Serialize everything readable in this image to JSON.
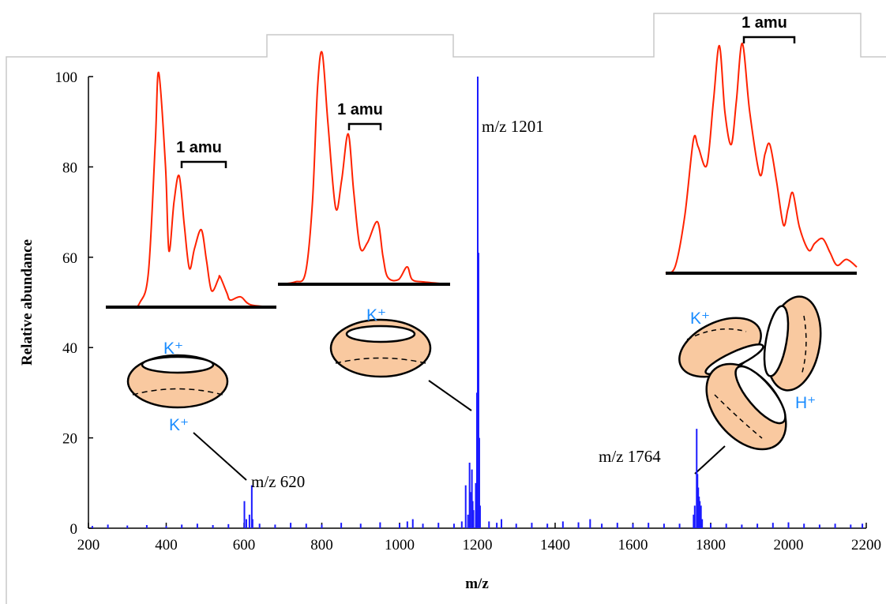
{
  "chart_data": {
    "type": "stick",
    "x_label": "m/z",
    "y_label": "Relative abundance",
    "xlim": [
      200,
      2200
    ],
    "xticks": [
      200,
      400,
      600,
      800,
      1000,
      1200,
      1400,
      1600,
      1800,
      2000,
      2200
    ],
    "ylim": [
      0,
      100
    ],
    "yticks": [
      0,
      20,
      40,
      60,
      80,
      100
    ],
    "color": "#1a1aff",
    "x": [
      210,
      250,
      300,
      350,
      400,
      440,
      480,
      520,
      560,
      601,
      606,
      614,
      620,
      622,
      640,
      680,
      720,
      760,
      800,
      850,
      900,
      950,
      1000,
      1020,
      1034,
      1060,
      1100,
      1140,
      1160,
      1170,
      1176,
      1180,
      1182,
      1186,
      1188,
      1190,
      1196,
      1199,
      1201,
      1203,
      1205,
      1207,
      1230,
      1250,
      1262,
      1300,
      1340,
      1380,
      1420,
      1460,
      1490,
      1520,
      1560,
      1600,
      1640,
      1680,
      1720,
      1756,
      1759,
      1764,
      1766,
      1768,
      1770,
      1772,
      1775,
      1778,
      1800,
      1840,
      1880,
      1920,
      1960,
      2000,
      2040,
      2080,
      2120,
      2160,
      2190
    ],
    "values": [
      0.5,
      0.8,
      0.6,
      0.7,
      0.5,
      0.8,
      1,
      0.7,
      0.9,
      6,
      2,
      3,
      9.5,
      2,
      1,
      0.8,
      1.2,
      1,
      0.8,
      1.2,
      1,
      1.3,
      1,
      1.5,
      2,
      1,
      1.2,
      1,
      1.5,
      9.5,
      3,
      14.5,
      8,
      13,
      6,
      4,
      10,
      30,
      100,
      61,
      20,
      5,
      1.5,
      1.2,
      2,
      1,
      1.2,
      1,
      1.5,
      1.3,
      2,
      1,
      1.2,
      1,
      1.2,
      1,
      1,
      3,
      5,
      22,
      12,
      9,
      7,
      6,
      5,
      2,
      1,
      1,
      0.8,
      1,
      1.2,
      1.3,
      1,
      0.8,
      1,
      0.8,
      1
    ],
    "annotations": [
      "m/z 620",
      "m/z 1201",
      "m/z 1764"
    ],
    "ions": [
      "K⁺",
      "K⁺",
      "K⁺",
      "K⁺",
      "H⁺"
    ],
    "insets": [
      {
        "label": "1 amu",
        "color": "#ff2200",
        "x": [
          0,
          15,
          20,
          25,
          29,
          31,
          35,
          37,
          40,
          43,
          46,
          49,
          52,
          56,
          59,
          62,
          66,
          67,
          71,
          73,
          79,
          85,
          100
        ],
        "values": [
          0,
          0,
          2,
          15,
          70,
          100,
          60,
          24,
          45,
          56,
          35,
          16.5,
          25,
          33,
          20,
          7,
          12,
          13,
          6,
          3,
          4.4,
          1,
          0
        ]
      },
      {
        "label": "1 amu",
        "color": "#ff2200",
        "x": [
          0,
          10,
          16,
          20,
          23,
          25.7,
          29,
          33.5,
          37,
          40.8,
          44,
          47.7,
          52,
          57.8,
          61,
          63.8,
          70,
          75,
          78,
          85,
          100
        ],
        "values": [
          0,
          1,
          5,
          35,
          85,
          100,
          70,
          33,
          45,
          65,
          40,
          16,
          18,
          27,
          12,
          3,
          2,
          7.5,
          2,
          1,
          0
        ]
      },
      {
        "label": "1 amu",
        "color": "#ff2200",
        "x": [
          0,
          5,
          10,
          14.5,
          17,
          21.5,
          25,
          28.1,
          31,
          34.3,
          37,
          40.1,
          44,
          49.2,
          52,
          54.5,
          58,
          61.6,
          64,
          66.5,
          70,
          74.8,
          78,
          82.2,
          86,
          89.7,
          94.6,
          100
        ],
        "values": [
          0,
          3,
          25,
          58,
          55,
          47,
          75,
          99,
          70,
          56,
          75,
          100,
          70,
          43,
          52,
          56,
          40,
          21,
          28,
          35,
          20,
          10,
          13,
          15,
          9,
          3.4,
          6,
          2.7
        ]
      }
    ]
  }
}
